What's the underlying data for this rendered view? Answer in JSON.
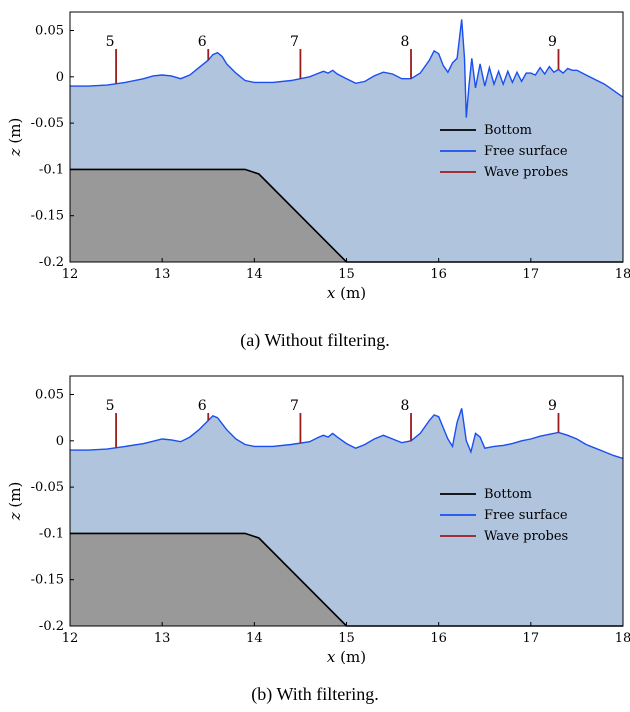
{
  "chart_data": [
    {
      "type": "area",
      "caption": "(a) Without filtering.",
      "xlabel_main": "x",
      "xlabel_unit": "(m)",
      "ylabel_main": "z",
      "ylabel_unit": "(m)",
      "xlim": [
        12,
        18
      ],
      "ylim": [
        -0.2,
        0.07
      ],
      "x_ticks": [
        12,
        13,
        14,
        15,
        16,
        17,
        18
      ],
      "x_tick_labels": [
        "12",
        "13",
        "14",
        "15",
        "16",
        "17",
        "18"
      ],
      "y_ticks": [
        0.05,
        0,
        -0.05,
        -0.1,
        -0.15,
        -0.2
      ],
      "y_tick_labels": [
        "0.05",
        "0",
        "-0.05",
        "-0.1",
        "-0.15",
        "-0.2"
      ],
      "legend": [
        "Bottom",
        "Free surface",
        "Wave probes"
      ],
      "legend_position": "right",
      "colors": {
        "bottom": "#000000",
        "bottom_fill": "#999999",
        "surface": "#1a4ff0",
        "water": "#b0c4de",
        "probes": "#9b1c1c"
      },
      "bottom": {
        "x": [
          12,
          13.9,
          14.05,
          15,
          18
        ],
        "z": [
          -0.1,
          -0.1,
          -0.105,
          -0.2,
          -0.2
        ]
      },
      "probes": [
        {
          "label": "5",
          "x": 12.5,
          "z_top": 0.03
        },
        {
          "label": "6",
          "x": 13.5,
          "z_top": 0.03
        },
        {
          "label": "7",
          "x": 14.5,
          "z_top": 0.03
        },
        {
          "label": "8",
          "x": 15.7,
          "z_top": 0.03
        },
        {
          "label": "9",
          "x": 17.3,
          "z_top": 0.03
        }
      ],
      "series": [
        {
          "name": "Free surface",
          "x": [
            12.0,
            12.2,
            12.4,
            12.6,
            12.8,
            12.9,
            13.0,
            13.1,
            13.2,
            13.3,
            13.4,
            13.5,
            13.55,
            13.6,
            13.65,
            13.7,
            13.8,
            13.9,
            14.0,
            14.2,
            14.4,
            14.5,
            14.6,
            14.7,
            14.75,
            14.8,
            14.85,
            14.9,
            15.0,
            15.1,
            15.2,
            15.3,
            15.4,
            15.5,
            15.6,
            15.7,
            15.8,
            15.9,
            15.95,
            16.0,
            16.05,
            16.1,
            16.15,
            16.2,
            16.25,
            16.28,
            16.3,
            16.33,
            16.36,
            16.4,
            16.45,
            16.5,
            16.55,
            16.6,
            16.65,
            16.7,
            16.75,
            16.8,
            16.85,
            16.9,
            16.95,
            17.0,
            17.05,
            17.1,
            17.15,
            17.2,
            17.25,
            17.3,
            17.35,
            17.4,
            17.45,
            17.5,
            17.6,
            17.7,
            17.8,
            17.9,
            18.0
          ],
          "z": [
            -0.01,
            -0.01,
            -0.009,
            -0.006,
            -0.002,
            0.001,
            0.002,
            0.001,
            -0.002,
            0.002,
            0.01,
            0.018,
            0.024,
            0.026,
            0.022,
            0.014,
            0.004,
            -0.004,
            -0.006,
            -0.006,
            -0.004,
            -0.002,
            0.0,
            0.004,
            0.006,
            0.004,
            0.007,
            0.003,
            -0.002,
            -0.007,
            -0.005,
            0.001,
            0.005,
            0.003,
            -0.002,
            -0.002,
            0.004,
            0.018,
            0.028,
            0.025,
            0.012,
            0.005,
            0.015,
            0.02,
            0.062,
            0.02,
            -0.044,
            -0.008,
            0.02,
            -0.012,
            0.014,
            -0.01,
            0.01,
            -0.008,
            0.006,
            -0.008,
            0.006,
            -0.006,
            0.005,
            -0.005,
            0.004,
            0.004,
            0.002,
            0.01,
            0.003,
            0.011,
            0.005,
            0.008,
            0.004,
            0.009,
            0.007,
            0.007,
            0.002,
            -0.003,
            -0.008,
            -0.015,
            -0.022
          ]
        }
      ]
    },
    {
      "type": "area",
      "caption": "(b) With filtering.",
      "xlabel_main": "x",
      "xlabel_unit": "(m)",
      "ylabel_main": "z",
      "ylabel_unit": "(m)",
      "xlim": [
        12,
        18
      ],
      "ylim": [
        -0.2,
        0.07
      ],
      "x_ticks": [
        12,
        13,
        14,
        15,
        16,
        17,
        18
      ],
      "x_tick_labels": [
        "12",
        "13",
        "14",
        "15",
        "16",
        "17",
        "18"
      ],
      "y_ticks": [
        0.05,
        0,
        -0.05,
        -0.1,
        -0.15,
        -0.2
      ],
      "y_tick_labels": [
        "0.05",
        "0",
        "-0.05",
        "-0.1",
        "-0.15",
        "-0.2"
      ],
      "legend": [
        "Bottom",
        "Free surface",
        "Wave probes"
      ],
      "legend_position": "right",
      "colors": {
        "bottom": "#000000",
        "bottom_fill": "#999999",
        "surface": "#1a4ff0",
        "water": "#b0c4de",
        "probes": "#9b1c1c"
      },
      "bottom": {
        "x": [
          12,
          13.9,
          14.05,
          15,
          18
        ],
        "z": [
          -0.1,
          -0.1,
          -0.105,
          -0.2,
          -0.2
        ]
      },
      "probes": [
        {
          "label": "5",
          "x": 12.5,
          "z_top": 0.03
        },
        {
          "label": "6",
          "x": 13.5,
          "z_top": 0.03
        },
        {
          "label": "7",
          "x": 14.5,
          "z_top": 0.03
        },
        {
          "label": "8",
          "x": 15.7,
          "z_top": 0.03
        },
        {
          "label": "9",
          "x": 17.3,
          "z_top": 0.03
        }
      ],
      "series": [
        {
          "name": "Free surface",
          "x": [
            12.0,
            12.2,
            12.4,
            12.6,
            12.8,
            13.0,
            13.1,
            13.2,
            13.3,
            13.4,
            13.5,
            13.55,
            13.6,
            13.7,
            13.8,
            13.9,
            14.0,
            14.2,
            14.4,
            14.6,
            14.7,
            14.75,
            14.8,
            14.85,
            14.9,
            15.0,
            15.1,
            15.2,
            15.3,
            15.4,
            15.5,
            15.6,
            15.7,
            15.8,
            15.9,
            15.95,
            16.0,
            16.05,
            16.1,
            16.15,
            16.2,
            16.25,
            16.3,
            16.35,
            16.4,
            16.45,
            16.5,
            16.6,
            16.7,
            16.8,
            16.9,
            17.0,
            17.1,
            17.2,
            17.3,
            17.4,
            17.5,
            17.6,
            17.7,
            17.8,
            17.9,
            18.0
          ],
          "z": [
            -0.01,
            -0.01,
            -0.009,
            -0.006,
            -0.003,
            0.002,
            0.001,
            -0.001,
            0.004,
            0.012,
            0.022,
            0.027,
            0.025,
            0.012,
            0.002,
            -0.004,
            -0.006,
            -0.006,
            -0.004,
            -0.001,
            0.004,
            0.006,
            0.004,
            0.008,
            0.004,
            -0.003,
            -0.008,
            -0.004,
            0.002,
            0.006,
            0.002,
            -0.002,
            0.0,
            0.008,
            0.022,
            0.028,
            0.026,
            0.014,
            0.002,
            -0.006,
            0.02,
            0.035,
            0.0,
            -0.012,
            0.008,
            0.004,
            -0.008,
            -0.006,
            -0.005,
            -0.003,
            0.0,
            0.002,
            0.005,
            0.007,
            0.009,
            0.006,
            0.002,
            -0.004,
            -0.008,
            -0.012,
            -0.016,
            -0.019
          ]
        }
      ]
    }
  ]
}
